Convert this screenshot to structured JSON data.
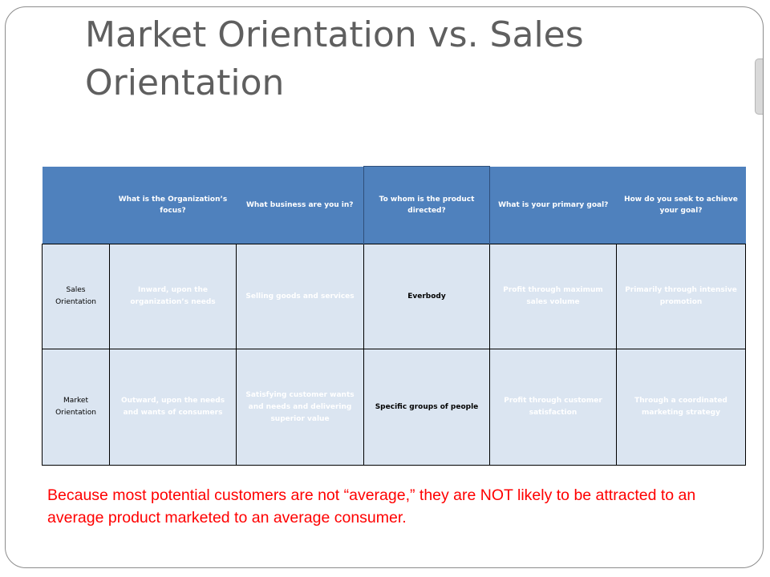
{
  "slide": {
    "title": "Market Orientation vs. Sales Orientation",
    "note": "Because most potential customers are not “average,” they are NOT likely to be attracted to an average product marketed to an average consumer.",
    "colors": {
      "title_text": "#5f5f5f",
      "header_fill": "#4f81bd",
      "cell_fill": "#dbe5f1",
      "note_text": "#ff0000"
    }
  },
  "table": {
    "headers": [
      "",
      "What is the Organization’s focus?",
      "What business are you in?",
      "To whom is the product directed?",
      "What is your primary goal?",
      "How do you seek to achieve your goal?"
    ],
    "rows": [
      {
        "label": "Sales Orientation",
        "cells": [
          "Inward, upon the organization’s needs",
          "Selling goods and services",
          "Everbody",
          "Profit through maximum sales volume",
          "Primarily through intensive promotion"
        ]
      },
      {
        "label": "Market Orientation",
        "cells": [
          "Outward, upon the needs and wants of consumers",
          "Satisfying customer wants and needs and delivering superior value",
          "Specific groups of people",
          "Profit through customer satisfaction",
          "Through a coordinated marketing strategy"
        ]
      }
    ]
  }
}
